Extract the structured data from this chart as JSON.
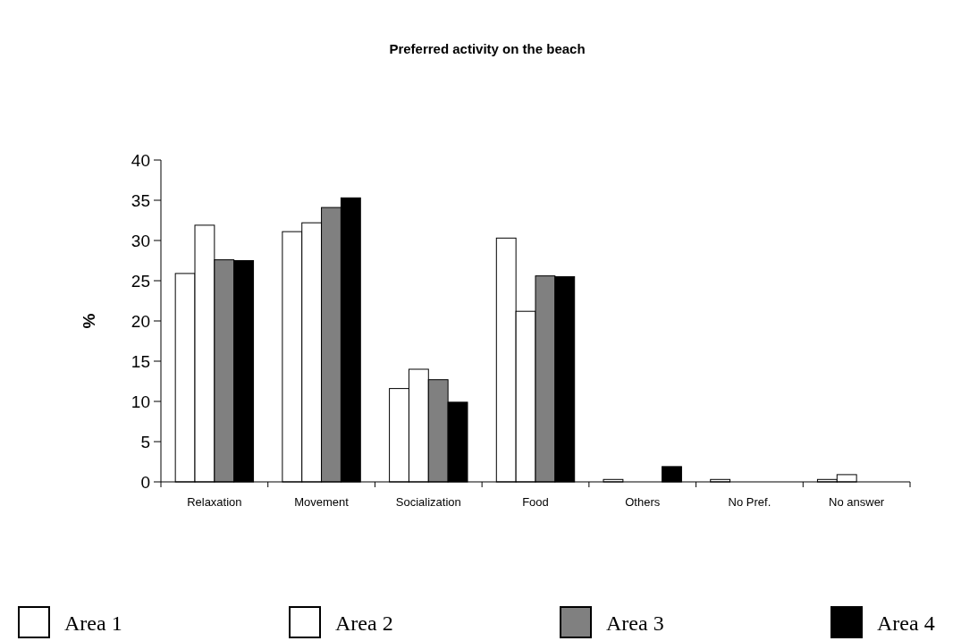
{
  "chart_data": {
    "type": "bar",
    "title": "Preferred activity on the beach",
    "ylabel": "%",
    "categories": [
      "Relaxation",
      "Movement",
      "Socialization",
      "Food",
      "Others",
      "No Pref.",
      "No answer"
    ],
    "series": [
      {
        "name": "Area 1",
        "color": "#ffffff",
        "values": [
          25.9,
          31.1,
          11.6,
          30.3,
          0.3,
          0.3,
          0.3
        ]
      },
      {
        "name": "Area 2",
        "color": "#ffffff",
        "values": [
          31.9,
          32.2,
          14.0,
          21.2,
          0,
          0,
          0.9
        ]
      },
      {
        "name": "Area 3",
        "color": "#808080",
        "values": [
          27.6,
          34.1,
          12.7,
          25.6,
          0,
          0,
          0
        ]
      },
      {
        "name": "Area 4",
        "color": "#000000",
        "values": [
          27.5,
          35.3,
          9.9,
          25.5,
          1.9,
          0,
          0
        ]
      }
    ],
    "ylim": [
      0,
      40
    ],
    "yticks": [
      0,
      5,
      10,
      15,
      20,
      25,
      30,
      35,
      40
    ],
    "grid": false,
    "legend": "bottom"
  }
}
